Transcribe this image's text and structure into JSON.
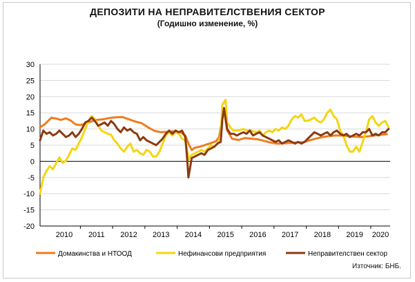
{
  "header": {
    "title": "ДЕПОЗИТИ НА НЕПРАВИТЕЛСТВЕНИЯ СЕКТОР",
    "subtitle": "(Годишно изменение, %)"
  },
  "footer": {
    "source": "Източник: БНБ."
  },
  "colors": {
    "households": "#f07b1f",
    "non_financial": "#f5d50f",
    "non_government": "#8b3a10",
    "grid": "#d9d9d9",
    "axis": "#000000"
  },
  "chart_data": {
    "type": "line",
    "title": "ДЕПОЗИТИ НА НЕПРАВИТЕЛСТВЕНИЯ СЕКТОР",
    "subtitle": "(Годишно изменение, %)",
    "x_unit": "years",
    "xlim": [
      2009.75,
      2020.6
    ],
    "ylim": [
      -20,
      30
    ],
    "yticks": [
      -20,
      -15,
      -10,
      -5,
      0,
      5,
      10,
      15,
      20,
      25,
      30
    ],
    "xtick_labels": [
      "2010",
      "2011",
      "2012",
      "2013",
      "2014",
      "2015",
      "2016",
      "2017",
      "2018",
      "2019",
      "2020"
    ],
    "grid": true,
    "legend_position": "bottom",
    "series": [
      {
        "name": "Домакинства и НТООД",
        "color": "#f07b1f",
        "points": [
          [
            2009.75,
            10.5
          ],
          [
            2009.9,
            11.5
          ],
          [
            2010.0,
            12.5
          ],
          [
            2010.1,
            13.5
          ],
          [
            2010.25,
            13.2
          ],
          [
            2010.4,
            12.8
          ],
          [
            2010.55,
            13.3
          ],
          [
            2010.7,
            12.6
          ],
          [
            2010.85,
            11.4
          ],
          [
            2011.0,
            11.2
          ],
          [
            2011.15,
            11.6
          ],
          [
            2011.3,
            12.2
          ],
          [
            2011.5,
            12.8
          ],
          [
            2011.7,
            13.0
          ],
          [
            2011.9,
            13.4
          ],
          [
            2012.1,
            13.6
          ],
          [
            2012.3,
            13.7
          ],
          [
            2012.5,
            13.0
          ],
          [
            2012.7,
            12.3
          ],
          [
            2012.9,
            11.8
          ],
          [
            2013.1,
            10.5
          ],
          [
            2013.3,
            9.4
          ],
          [
            2013.5,
            9.0
          ],
          [
            2013.7,
            9.1
          ],
          [
            2013.9,
            9.3
          ],
          [
            2014.1,
            9.0
          ],
          [
            2014.25,
            8.0
          ],
          [
            2014.35,
            5.5
          ],
          [
            2014.45,
            3.5
          ],
          [
            2014.55,
            4.2
          ],
          [
            2014.7,
            4.5
          ],
          [
            2014.85,
            5.0
          ],
          [
            2015.0,
            5.5
          ],
          [
            2015.2,
            6.2
          ],
          [
            2015.3,
            7.5
          ],
          [
            2015.45,
            16.0
          ],
          [
            2015.55,
            9.5
          ],
          [
            2015.7,
            7.0
          ],
          [
            2015.9,
            6.6
          ],
          [
            2016.1,
            7.2
          ],
          [
            2016.3,
            7.0
          ],
          [
            2016.5,
            6.8
          ],
          [
            2016.7,
            6.3
          ],
          [
            2016.9,
            5.8
          ],
          [
            2017.1,
            5.5
          ],
          [
            2017.3,
            5.6
          ],
          [
            2017.5,
            5.7
          ],
          [
            2017.7,
            5.8
          ],
          [
            2017.9,
            5.9
          ],
          [
            2018.1,
            6.5
          ],
          [
            2018.3,
            7.0
          ],
          [
            2018.5,
            7.5
          ],
          [
            2018.7,
            7.8
          ],
          [
            2018.9,
            8.0
          ],
          [
            2019.1,
            8.0
          ],
          [
            2019.3,
            7.8
          ],
          [
            2019.5,
            7.6
          ],
          [
            2019.7,
            7.5
          ],
          [
            2019.9,
            7.7
          ],
          [
            2020.1,
            8.0
          ],
          [
            2020.3,
            8.2
          ],
          [
            2020.5,
            8.4
          ]
        ]
      },
      {
        "name": "Нефинансови предприятия",
        "color": "#f5d50f",
        "points": [
          [
            2009.75,
            -10.0
          ],
          [
            2009.85,
            -5.0
          ],
          [
            2009.95,
            -3.0
          ],
          [
            2010.05,
            -1.5
          ],
          [
            2010.15,
            -2.5
          ],
          [
            2010.25,
            -0.5
          ],
          [
            2010.35,
            1.2
          ],
          [
            2010.45,
            -0.5
          ],
          [
            2010.55,
            0.2
          ],
          [
            2010.65,
            2.0
          ],
          [
            2010.75,
            4.0
          ],
          [
            2010.85,
            3.5
          ],
          [
            2010.95,
            5.5
          ],
          [
            2011.05,
            7.5
          ],
          [
            2011.15,
            10.0
          ],
          [
            2011.25,
            12.5
          ],
          [
            2011.35,
            14.0
          ],
          [
            2011.45,
            13.0
          ],
          [
            2011.55,
            11.0
          ],
          [
            2011.65,
            9.5
          ],
          [
            2011.75,
            9.0
          ],
          [
            2011.85,
            8.5
          ],
          [
            2011.95,
            8.2
          ],
          [
            2012.05,
            6.5
          ],
          [
            2012.15,
            5.5
          ],
          [
            2012.25,
            4.0
          ],
          [
            2012.35,
            3.0
          ],
          [
            2012.45,
            4.5
          ],
          [
            2012.55,
            5.5
          ],
          [
            2012.65,
            3.0
          ],
          [
            2012.75,
            3.5
          ],
          [
            2012.85,
            2.5
          ],
          [
            2012.95,
            2.0
          ],
          [
            2013.05,
            3.5
          ],
          [
            2013.15,
            3.0
          ],
          [
            2013.25,
            1.5
          ],
          [
            2013.35,
            1.5
          ],
          [
            2013.45,
            3.0
          ],
          [
            2013.55,
            5.5
          ],
          [
            2013.65,
            8.0
          ],
          [
            2013.75,
            9.0
          ],
          [
            2013.85,
            8.0
          ],
          [
            2013.95,
            9.0
          ],
          [
            2014.05,
            8.5
          ],
          [
            2014.15,
            7.0
          ],
          [
            2014.25,
            6.5
          ],
          [
            2014.3,
            4.0
          ],
          [
            2014.35,
            0.5
          ],
          [
            2014.45,
            2.0
          ],
          [
            2014.55,
            2.5
          ],
          [
            2014.65,
            3.0
          ],
          [
            2014.75,
            3.5
          ],
          [
            2014.85,
            3.0
          ],
          [
            2014.95,
            4.0
          ],
          [
            2015.05,
            5.0
          ],
          [
            2015.15,
            4.5
          ],
          [
            2015.25,
            5.5
          ],
          [
            2015.35,
            8.0
          ],
          [
            2015.4,
            17.5
          ],
          [
            2015.5,
            19.0
          ],
          [
            2015.55,
            12.0
          ],
          [
            2015.65,
            10.5
          ],
          [
            2015.75,
            9.5
          ],
          [
            2015.9,
            9.5
          ],
          [
            2016.05,
            10.0
          ],
          [
            2016.15,
            9.5
          ],
          [
            2016.3,
            9.5
          ],
          [
            2016.45,
            9.0
          ],
          [
            2016.55,
            9.5
          ],
          [
            2016.65,
            8.0
          ],
          [
            2016.75,
            9.0
          ],
          [
            2016.85,
            9.5
          ],
          [
            2016.95,
            9.0
          ],
          [
            2017.05,
            10.0
          ],
          [
            2017.15,
            9.5
          ],
          [
            2017.25,
            10.5
          ],
          [
            2017.35,
            10.0
          ],
          [
            2017.45,
            11.0
          ],
          [
            2017.55,
            13.0
          ],
          [
            2017.65,
            14.0
          ],
          [
            2017.75,
            13.5
          ],
          [
            2017.85,
            14.5
          ],
          [
            2017.95,
            12.5
          ],
          [
            2018.05,
            12.5
          ],
          [
            2018.15,
            13.0
          ],
          [
            2018.25,
            13.5
          ],
          [
            2018.35,
            12.5
          ],
          [
            2018.45,
            12.0
          ],
          [
            2018.55,
            13.0
          ],
          [
            2018.65,
            15.0
          ],
          [
            2018.75,
            16.0
          ],
          [
            2018.85,
            14.0
          ],
          [
            2018.95,
            13.0
          ],
          [
            2019.05,
            9.5
          ],
          [
            2019.15,
            8.0
          ],
          [
            2019.25,
            5.0
          ],
          [
            2019.35,
            3.0
          ],
          [
            2019.45,
            3.0
          ],
          [
            2019.55,
            4.5
          ],
          [
            2019.65,
            3.0
          ],
          [
            2019.75,
            6.0
          ],
          [
            2019.85,
            9.0
          ],
          [
            2019.95,
            13.0
          ],
          [
            2020.05,
            14.0
          ],
          [
            2020.15,
            12.0
          ],
          [
            2020.25,
            11.0
          ],
          [
            2020.35,
            12.0
          ],
          [
            2020.45,
            12.5
          ],
          [
            2020.55,
            10.5
          ]
        ]
      },
      {
        "name": "Неправителствен сектор",
        "color": "#8b3a10",
        "points": [
          [
            2009.75,
            6.5
          ],
          [
            2009.85,
            9.5
          ],
          [
            2009.95,
            8.5
          ],
          [
            2010.05,
            9.0
          ],
          [
            2010.15,
            8.0
          ],
          [
            2010.25,
            8.5
          ],
          [
            2010.35,
            9.5
          ],
          [
            2010.45,
            8.5
          ],
          [
            2010.55,
            7.5
          ],
          [
            2010.65,
            8.0
          ],
          [
            2010.75,
            9.0
          ],
          [
            2010.85,
            7.5
          ],
          [
            2010.95,
            8.5
          ],
          [
            2011.05,
            10.0
          ],
          [
            2011.15,
            12.0
          ],
          [
            2011.25,
            12.5
          ],
          [
            2011.35,
            13.5
          ],
          [
            2011.45,
            12.5
          ],
          [
            2011.55,
            11.0
          ],
          [
            2011.65,
            11.5
          ],
          [
            2011.75,
            12.0
          ],
          [
            2011.85,
            11.0
          ],
          [
            2011.95,
            12.5
          ],
          [
            2012.05,
            11.5
          ],
          [
            2012.15,
            10.0
          ],
          [
            2012.25,
            9.0
          ],
          [
            2012.35,
            10.5
          ],
          [
            2012.45,
            9.5
          ],
          [
            2012.55,
            10.0
          ],
          [
            2012.65,
            9.0
          ],
          [
            2012.75,
            8.5
          ],
          [
            2012.85,
            6.5
          ],
          [
            2012.95,
            7.5
          ],
          [
            2013.05,
            6.5
          ],
          [
            2013.15,
            6.0
          ],
          [
            2013.25,
            5.5
          ],
          [
            2013.35,
            5.0
          ],
          [
            2013.45,
            6.0
          ],
          [
            2013.55,
            7.0
          ],
          [
            2013.65,
            8.5
          ],
          [
            2013.75,
            9.5
          ],
          [
            2013.85,
            8.5
          ],
          [
            2013.95,
            9.5
          ],
          [
            2014.05,
            9.0
          ],
          [
            2014.15,
            9.5
          ],
          [
            2014.25,
            7.5
          ],
          [
            2014.3,
            2.0
          ],
          [
            2014.35,
            -5.0
          ],
          [
            2014.45,
            1.0
          ],
          [
            2014.55,
            1.5
          ],
          [
            2014.65,
            2.0
          ],
          [
            2014.75,
            2.5
          ],
          [
            2014.85,
            2.0
          ],
          [
            2014.95,
            3.5
          ],
          [
            2015.05,
            4.0
          ],
          [
            2015.15,
            4.5
          ],
          [
            2015.25,
            5.5
          ],
          [
            2015.35,
            6.0
          ],
          [
            2015.4,
            13.0
          ],
          [
            2015.45,
            16.5
          ],
          [
            2015.55,
            10.0
          ],
          [
            2015.65,
            8.5
          ],
          [
            2015.75,
            8.5
          ],
          [
            2015.85,
            8.0
          ],
          [
            2015.95,
            8.5
          ],
          [
            2016.05,
            9.0
          ],
          [
            2016.15,
            8.5
          ],
          [
            2016.25,
            9.5
          ],
          [
            2016.35,
            8.0
          ],
          [
            2016.45,
            8.5
          ],
          [
            2016.55,
            9.0
          ],
          [
            2016.65,
            8.0
          ],
          [
            2016.75,
            7.5
          ],
          [
            2016.85,
            7.0
          ],
          [
            2016.95,
            6.5
          ],
          [
            2017.05,
            6.0
          ],
          [
            2017.15,
            6.5
          ],
          [
            2017.25,
            5.5
          ],
          [
            2017.35,
            6.0
          ],
          [
            2017.45,
            6.5
          ],
          [
            2017.55,
            6.0
          ],
          [
            2017.65,
            5.5
          ],
          [
            2017.75,
            6.0
          ],
          [
            2017.85,
            5.5
          ],
          [
            2017.95,
            6.0
          ],
          [
            2018.05,
            7.0
          ],
          [
            2018.15,
            8.0
          ],
          [
            2018.25,
            9.0
          ],
          [
            2018.35,
            8.5
          ],
          [
            2018.45,
            8.0
          ],
          [
            2018.55,
            8.5
          ],
          [
            2018.65,
            9.0
          ],
          [
            2018.75,
            8.0
          ],
          [
            2018.85,
            9.0
          ],
          [
            2018.95,
            9.5
          ],
          [
            2019.05,
            8.5
          ],
          [
            2019.15,
            8.0
          ],
          [
            2019.25,
            8.5
          ],
          [
            2019.35,
            7.5
          ],
          [
            2019.45,
            8.0
          ],
          [
            2019.55,
            8.5
          ],
          [
            2019.65,
            8.0
          ],
          [
            2019.75,
            9.0
          ],
          [
            2019.85,
            9.0
          ],
          [
            2019.95,
            10.0
          ],
          [
            2020.05,
            8.0
          ],
          [
            2020.15,
            8.5
          ],
          [
            2020.25,
            8.0
          ],
          [
            2020.35,
            9.0
          ],
          [
            2020.45,
            9.0
          ],
          [
            2020.55,
            10.0
          ]
        ]
      }
    ]
  }
}
